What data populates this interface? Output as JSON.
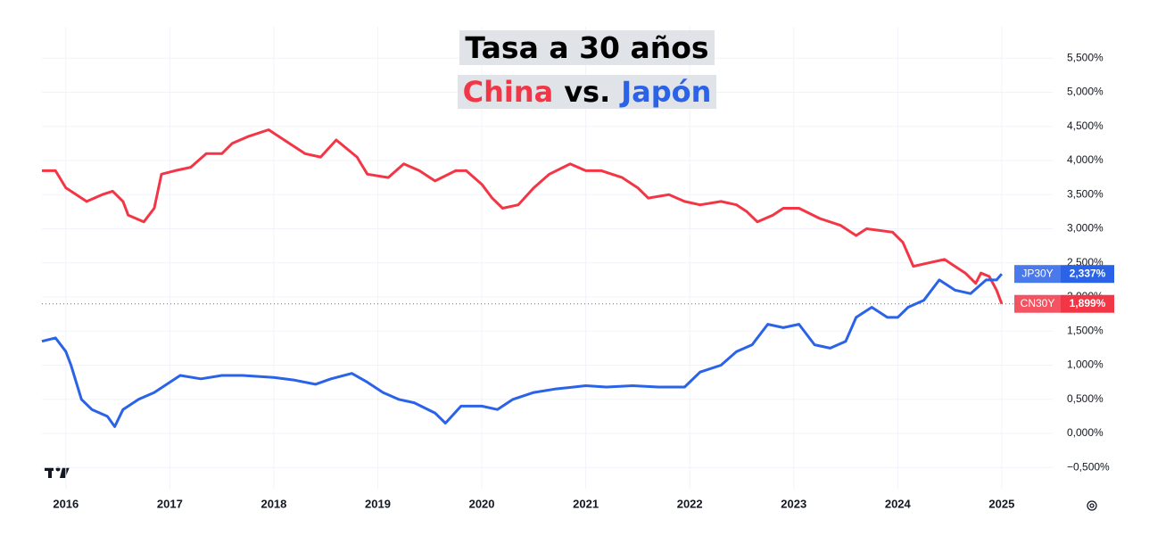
{
  "chart_data": {
    "type": "line",
    "title": "Tasa a 30 años",
    "subtitle_joiner": "vs.",
    "xlim": [
      2015.77,
      2025.49
    ],
    "xticks": [
      2016,
      2017,
      2018,
      2019,
      2020,
      2021,
      2022,
      2023,
      2024,
      2025
    ],
    "ylim": [
      -0.81,
      5.96
    ],
    "yticks": [
      {
        "value": 5.5,
        "label": "5,500%"
      },
      {
        "value": 5,
        "label": "5,000%"
      },
      {
        "value": 4.5,
        "label": "4,500%"
      },
      {
        "value": 4,
        "label": "4,000%"
      },
      {
        "value": 3.5,
        "label": "3,500%"
      },
      {
        "value": 3,
        "label": "3,000%"
      },
      {
        "value": 2.5,
        "label": "2,500%"
      },
      {
        "value": 2,
        "label": "2,000%"
      },
      {
        "value": 1.5,
        "label": "1,500%"
      },
      {
        "value": 1,
        "label": "1,000%"
      },
      {
        "value": 0.5,
        "label": "0,500%"
      },
      {
        "value": 0,
        "label": "0,000%"
      },
      {
        "value": -0.5,
        "label": "−0,500%"
      }
    ],
    "grid": true,
    "series": [
      {
        "name": "China",
        "symbol": "CN30Y",
        "color": "#f23645",
        "x": [
          2015.77,
          2015.9,
          2016.0,
          2016.1,
          2016.2,
          2016.35,
          2016.45,
          2016.55,
          2016.6,
          2016.75,
          2016.85,
          2016.92,
          2017.05,
          2017.2,
          2017.35,
          2017.5,
          2017.6,
          2017.75,
          2017.95,
          2018.1,
          2018.3,
          2018.45,
          2018.6,
          2018.8,
          2018.9,
          2019.1,
          2019.25,
          2019.4,
          2019.55,
          2019.75,
          2019.85,
          2020.0,
          2020.1,
          2020.2,
          2020.35,
          2020.5,
          2020.65,
          2020.85,
          2021.0,
          2021.15,
          2021.35,
          2021.5,
          2021.6,
          2021.8,
          2021.95,
          2022.1,
          2022.3,
          2022.45,
          2022.55,
          2022.65,
          2022.8,
          2022.9,
          2023.05,
          2023.25,
          2023.45,
          2023.6,
          2023.7,
          2023.95,
          2024.05,
          2024.15,
          2024.3,
          2024.45,
          2024.55,
          2024.65,
          2024.75,
          2024.8,
          2024.88,
          2024.95,
          2025.0
        ],
        "values": [
          3.85,
          3.85,
          3.6,
          3.5,
          3.4,
          3.5,
          3.55,
          3.4,
          3.2,
          3.1,
          3.3,
          3.8,
          3.85,
          3.9,
          4.1,
          4.1,
          4.25,
          4.35,
          4.45,
          4.3,
          4.1,
          4.05,
          4.3,
          4.05,
          3.8,
          3.75,
          3.95,
          3.85,
          3.7,
          3.85,
          3.85,
          3.65,
          3.45,
          3.3,
          3.35,
          3.6,
          3.8,
          3.95,
          3.85,
          3.85,
          3.75,
          3.6,
          3.45,
          3.5,
          3.4,
          3.35,
          3.4,
          3.35,
          3.25,
          3.1,
          3.2,
          3.3,
          3.3,
          3.15,
          3.05,
          2.9,
          3.0,
          2.95,
          2.8,
          2.45,
          2.5,
          2.55,
          2.45,
          2.35,
          2.2,
          2.35,
          2.3,
          2.1,
          1.899
        ],
        "value_labels": [
          null,
          null,
          null,
          null,
          null,
          null,
          null,
          null,
          null,
          null,
          null,
          null,
          null,
          null,
          null,
          null,
          null,
          null,
          null,
          null,
          null,
          null,
          null,
          null,
          null,
          null,
          null,
          null,
          null,
          null,
          null,
          null,
          null,
          null,
          null,
          null,
          null,
          null,
          null,
          null,
          null,
          null,
          null,
          null,
          null,
          null,
          null,
          null,
          null,
          null,
          null,
          null,
          null,
          null,
          null,
          null,
          null,
          null,
          null,
          null,
          null,
          null,
          null,
          null,
          null,
          null,
          null,
          null,
          "1,899%"
        ]
      },
      {
        "name": "Japón",
        "symbol": "JP30Y",
        "color": "#2a62e8",
        "x": [
          2015.77,
          2015.9,
          2016.0,
          2016.05,
          2016.15,
          2016.25,
          2016.4,
          2016.47,
          2016.55,
          2016.7,
          2016.85,
          2017.0,
          2017.1,
          2017.3,
          2017.5,
          2017.7,
          2018.0,
          2018.2,
          2018.4,
          2018.55,
          2018.75,
          2018.9,
          2019.05,
          2019.2,
          2019.35,
          2019.55,
          2019.65,
          2019.8,
          2020.0,
          2020.15,
          2020.3,
          2020.5,
          2020.7,
          2021.0,
          2021.2,
          2021.45,
          2021.7,
          2021.95,
          2022.1,
          2022.3,
          2022.45,
          2022.6,
          2022.75,
          2022.9,
          2023.05,
          2023.2,
          2023.35,
          2023.5,
          2023.6,
          2023.75,
          2023.9,
          2024.0,
          2024.1,
          2024.25,
          2024.4,
          2024.55,
          2024.7,
          2024.85,
          2024.95,
          2025.0
        ],
        "values": [
          1.35,
          1.4,
          1.2,
          1.0,
          0.5,
          0.35,
          0.25,
          0.1,
          0.35,
          0.5,
          0.6,
          0.75,
          0.85,
          0.8,
          0.85,
          0.85,
          0.82,
          0.78,
          0.72,
          0.8,
          0.88,
          0.75,
          0.6,
          0.5,
          0.45,
          0.3,
          0.15,
          0.4,
          0.4,
          0.35,
          0.5,
          0.6,
          0.65,
          0.7,
          0.68,
          0.7,
          0.68,
          0.68,
          0.9,
          1.0,
          1.2,
          1.3,
          1.6,
          1.55,
          1.6,
          1.3,
          1.25,
          1.35,
          1.7,
          1.85,
          1.7,
          1.7,
          1.85,
          1.95,
          2.25,
          2.1,
          2.05,
          2.25,
          2.25,
          2.337
        ],
        "value_labels": [
          null,
          null,
          null,
          null,
          null,
          null,
          null,
          null,
          null,
          null,
          null,
          null,
          null,
          null,
          null,
          null,
          null,
          null,
          null,
          null,
          null,
          null,
          null,
          null,
          null,
          null,
          null,
          null,
          null,
          null,
          null,
          null,
          null,
          null,
          null,
          null,
          null,
          null,
          null,
          null,
          null,
          null,
          null,
          null,
          null,
          null,
          null,
          null,
          null,
          null,
          null,
          null,
          null,
          null,
          null,
          null,
          null,
          null,
          null,
          "2,337%"
        ]
      }
    ]
  }
}
